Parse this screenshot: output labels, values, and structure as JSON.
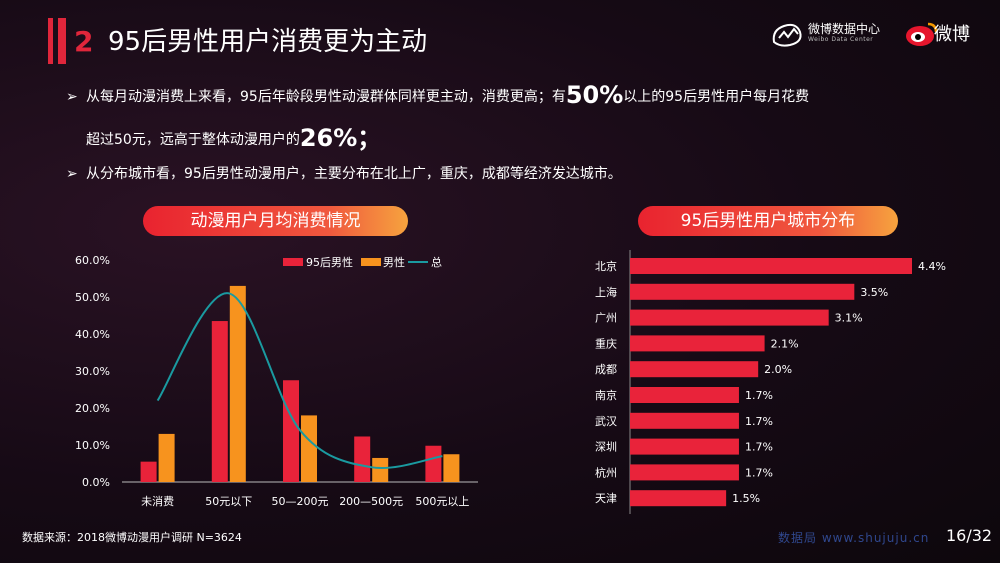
{
  "header": {
    "number": "2",
    "title": "95后男性用户消费更为主动",
    "logo_name": "微博数据中心",
    "logo_sub": "Weibo Data Center",
    "logo_brand": "微博"
  },
  "bullets": {
    "b1_pre": "从每月动漫消费上来看，95后年龄段男性动漫群体同样更主动，消费更高；有",
    "b1_big": "50%",
    "b1_post": "以上的95后男性用户每月花费",
    "b2_pre": "超过50元，远高于整体动漫用户的",
    "b2_big": "26%；",
    "b3": "从分布城市看，95后男性动漫用户，主要分布在北上广，重庆，成都等经济发达城市。"
  },
  "sections": {
    "left_title": "动漫用户月均消费情况",
    "right_title": "95后男性用户城市分布"
  },
  "colors": {
    "red": "#e9233a",
    "orange": "#f7931e",
    "teal": "#1a9aa0"
  },
  "chart_data": [
    {
      "type": "bar",
      "categories": [
        "未消费",
        "50元以下",
        "50—200元",
        "200—500元",
        "500元以上"
      ],
      "series": [
        {
          "name": "95后男性",
          "type": "bar",
          "values": [
            5.5,
            43.5,
            27.5,
            12.3,
            9.8
          ]
        },
        {
          "name": "男性",
          "type": "bar",
          "values": [
            13,
            53,
            18,
            6.5,
            7.5
          ]
        },
        {
          "name": "总",
          "type": "line",
          "values": [
            22,
            51,
            14,
            4,
            7
          ]
        }
      ],
      "y_ticks": [
        "0.0%",
        "10.0%",
        "20.0%",
        "30.0%",
        "40.0%",
        "50.0%",
        "60.0%"
      ],
      "ylim": [
        0,
        60
      ],
      "legend": "top-right"
    },
    {
      "type": "bar",
      "orientation": "horizontal",
      "categories": [
        "北京",
        "上海",
        "广州",
        "重庆",
        "成都",
        "南京",
        "武汉",
        "深圳",
        "杭州",
        "天津"
      ],
      "values": [
        4.4,
        3.5,
        3.1,
        2.1,
        2.0,
        1.7,
        1.7,
        1.7,
        1.7,
        1.5
      ],
      "labels": [
        "4.4%",
        "3.5%",
        "3.1%",
        "2.1%",
        "2.0%",
        "1.7%",
        "1.7%",
        "1.7%",
        "1.7%",
        "1.5%"
      ]
    }
  ],
  "footer": {
    "source": "数据来源：2018微博动漫用户调研 N=3624",
    "page": "16/32",
    "watermark": "数据局 www.shujuju.cn"
  }
}
